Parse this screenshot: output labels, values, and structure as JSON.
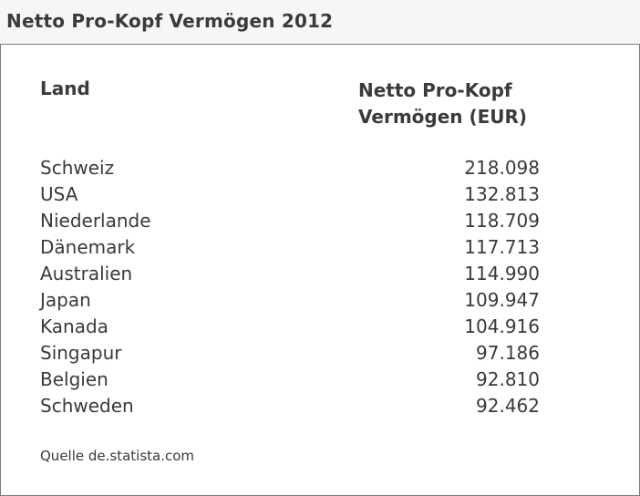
{
  "page": {
    "title": "Netto Pro-Kopf Vermögen 2012"
  },
  "table": {
    "header_country": "Land",
    "header_value_line1": "Netto Pro-Kopf",
    "header_value_line2": "Vermögen (EUR)",
    "rows": [
      {
        "country": "Schweiz",
        "value": "218.098"
      },
      {
        "country": "USA",
        "value": "132.813"
      },
      {
        "country": "Niederlande",
        "value": "118.709"
      },
      {
        "country": "Dänemark",
        "value": "117.713"
      },
      {
        "country": "Australien",
        "value": "114.990"
      },
      {
        "country": "Japan",
        "value": "109.947"
      },
      {
        "country": "Kanada",
        "value": "104.916"
      },
      {
        "country": "Singapur",
        "value": "97.186"
      },
      {
        "country": "Belgien",
        "value": "92.810"
      },
      {
        "country": "Schweden",
        "value": "92.462"
      }
    ]
  },
  "footer": {
    "source": "Quelle de.statista.com"
  }
}
